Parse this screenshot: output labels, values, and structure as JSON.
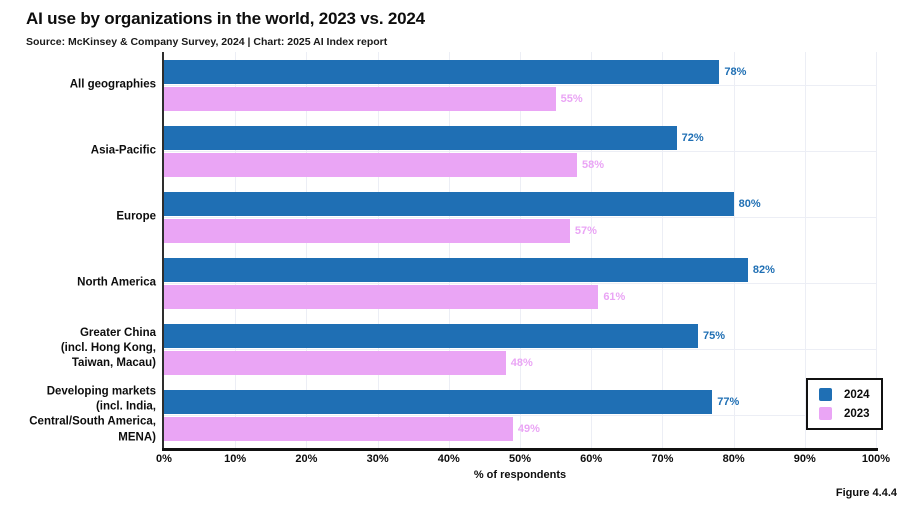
{
  "header": {
    "title": "AI use by organizations in the world, 2023 vs. 2024",
    "source": "Source: McKinsey & Company Survey, 2024 | Chart: 2025 AI Index report"
  },
  "figure_label": "Figure 4.4.4",
  "colors": {
    "blue_2024": "#1f6fb4",
    "pink_2023": "#eaa5f5",
    "gridline": "#eceef5",
    "axis": "#111111"
  },
  "chart_data": {
    "type": "bar",
    "orientation": "horizontal",
    "title": "AI use by organizations in the world, 2023 vs. 2024",
    "subtitle": "Source: McKinsey & Company Survey, 2024 | Chart: 2025 AI Index report",
    "categories": [
      "All geographies",
      "Asia-Pacific",
      "Europe",
      "North America",
      "Greater China\n(incl. Hong Kong,\nTaiwan, Macau)",
      "Developing markets\n(incl. India,\nCentral/South America,\nMENA)"
    ],
    "series": [
      {
        "name": "2024",
        "color": "#1f6fb4",
        "values": [
          78,
          72,
          80,
          82,
          75,
          77
        ]
      },
      {
        "name": "2023",
        "color": "#eaa5f5",
        "values": [
          55,
          58,
          57,
          61,
          48,
          49
        ]
      }
    ],
    "value_suffix": "%",
    "xlabel": "% of respondents",
    "xlim": [
      0,
      100
    ],
    "xtick_step": 10,
    "xticks": [
      "0%",
      "10%",
      "20%",
      "30%",
      "40%",
      "50%",
      "60%",
      "70%",
      "80%",
      "90%",
      "100%"
    ],
    "grid": true,
    "legend_position": "bottom-right"
  }
}
